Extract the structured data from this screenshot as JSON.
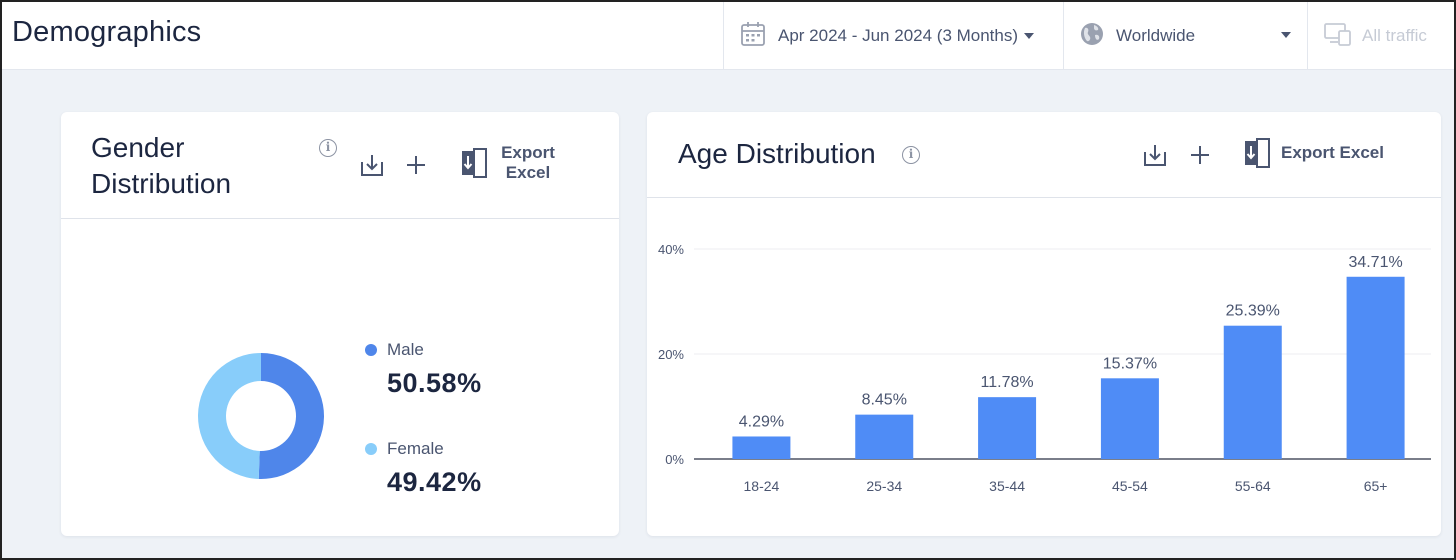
{
  "header": {
    "title": "Demographics",
    "date_range": "Apr 2024 - Jun 2024 (3 Months)",
    "region": "Worldwide",
    "traffic": "All traffic"
  },
  "gender_card": {
    "title": "Gender Distribution",
    "export_label_line1": "Export",
    "export_label_line2": "Excel",
    "legend": [
      {
        "name": "Male",
        "value": "50.58%",
        "color": "#4f86ea"
      },
      {
        "name": "Female",
        "value": "49.42%",
        "color": "#88cdfa"
      }
    ]
  },
  "age_card": {
    "title": "Age Distribution",
    "export_label": "Export Excel"
  },
  "chart_data": [
    {
      "type": "pie",
      "labels": [
        "Male",
        "Female"
      ],
      "values": [
        50.58,
        49.42
      ],
      "colors": [
        "#4f86ea",
        "#88cdfa"
      ],
      "donut": true
    },
    {
      "type": "bar",
      "categories": [
        "18-24",
        "25-34",
        "35-44",
        "45-54",
        "55-64",
        "65+"
      ],
      "values": [
        4.29,
        8.45,
        11.78,
        15.37,
        25.39,
        34.71
      ],
      "data_labels": [
        "4.29%",
        "8.45%",
        "11.78%",
        "15.37%",
        "25.39%",
        "34.71%"
      ],
      "yticks": [
        "0%",
        "20%",
        "40%"
      ],
      "ytick_values": [
        0,
        20,
        40
      ],
      "ylim": [
        0,
        40
      ],
      "grid": true,
      "color": "#4f8cf6"
    }
  ]
}
